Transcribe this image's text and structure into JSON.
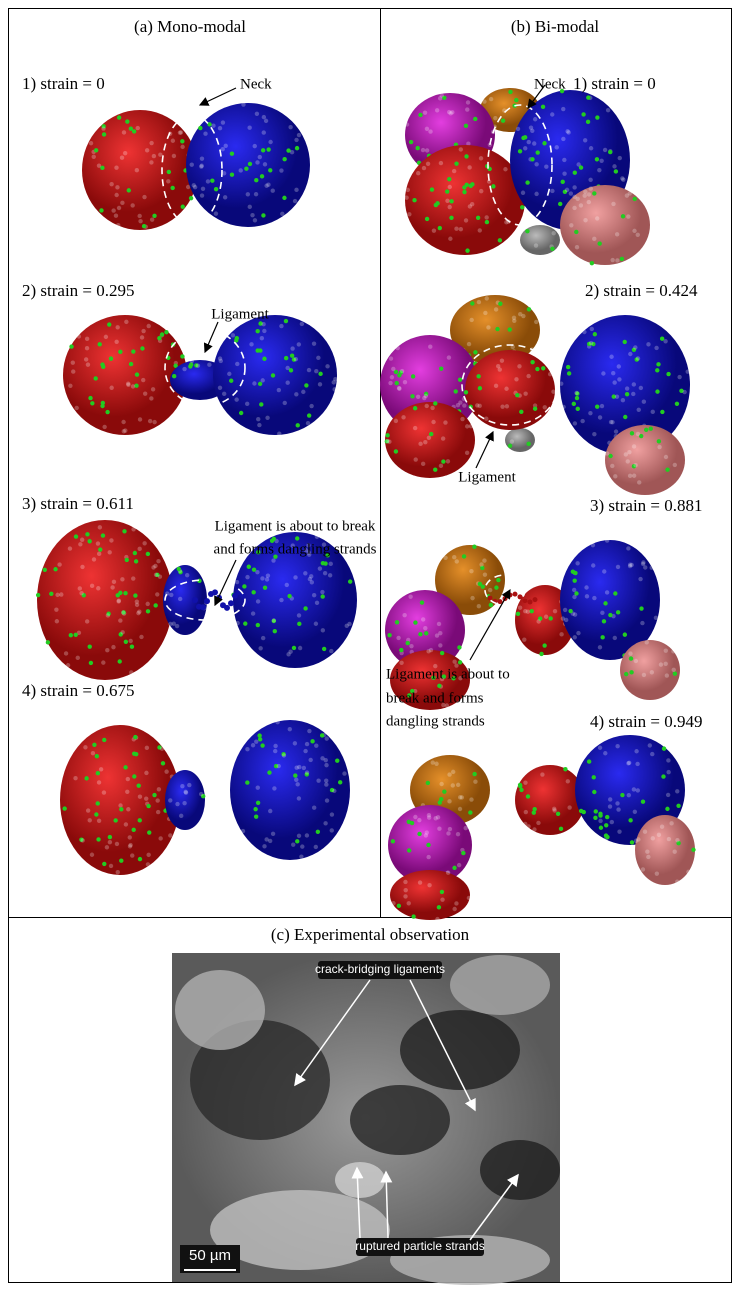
{
  "panels": [
    {
      "title": "(a) Mono-modal",
      "stages": [
        {
          "label": "1) strain = 0",
          "annotation": [
            "Neck"
          ]
        },
        {
          "label": "2) strain = 0.295",
          "annotation": [
            "Ligament"
          ]
        },
        {
          "label": "3) strain = 0.611",
          "annotation": [
            "Ligament is about to break",
            "and forms dangling strands"
          ]
        },
        {
          "label": "4) strain = 0.675"
        }
      ]
    },
    {
      "title": "(b) Bi-modal",
      "stages": [
        {
          "label": "1) strain = 0",
          "annotation": [
            "Neck"
          ]
        },
        {
          "label": "2) strain = 0.424",
          "annotation": [
            "Ligament"
          ]
        },
        {
          "label": "3) strain = 0.881",
          "annotation": [
            "Ligament is about to",
            "break and forms",
            "dangling strands"
          ]
        },
        {
          "label": "4) strain = 0.949"
        }
      ]
    }
  ],
  "experimental": {
    "title": "(c) Experimental observation",
    "labels": [
      "crack-bridging ligaments",
      "ruptured particle strands"
    ],
    "scale_bar": "50 µm"
  }
}
